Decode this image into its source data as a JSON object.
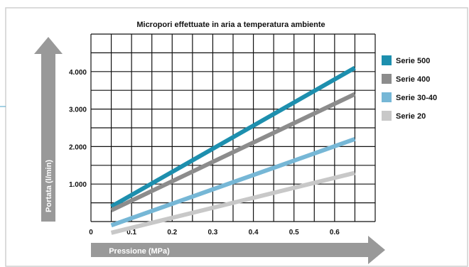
{
  "chart_data": {
    "type": "line",
    "title": "Micropori effettuate in aria a temperatura ambiente",
    "xlabel": "Pressione (MPa)",
    "ylabel": "Portata (l/min)",
    "xlim": [
      0,
      0.7
    ],
    "ylim": [
      0,
      5000
    ],
    "xticks": [
      0,
      0.1,
      0.2,
      0.3,
      0.4,
      0.5,
      0.6
    ],
    "xtick_labels": [
      "0",
      "0.1",
      "0.2",
      "0.3",
      "0.4",
      "0.5",
      "0.6"
    ],
    "yticks": [
      1000,
      2000,
      3000,
      4000
    ],
    "ytick_labels": [
      "1.000",
      "2.000",
      "3.000",
      "4.000"
    ],
    "grid": true,
    "legend_position": "right",
    "series": [
      {
        "name": "Serie 500",
        "color": "#1d8fae",
        "x": [
          0.05,
          0.65
        ],
        "y": [
          400,
          4100
        ]
      },
      {
        "name": "Serie 400",
        "color": "#8c8c8c",
        "x": [
          0.05,
          0.65
        ],
        "y": [
          300,
          3400
        ]
      },
      {
        "name": "Serie 30-40",
        "color": "#76b7d6",
        "x": [
          0.05,
          0.65
        ],
        "y": [
          -100,
          2200
        ]
      },
      {
        "name": "Serie 20",
        "color": "#c8c8c8",
        "x": [
          0.05,
          0.65
        ],
        "y": [
          -300,
          1300
        ]
      }
    ]
  }
}
